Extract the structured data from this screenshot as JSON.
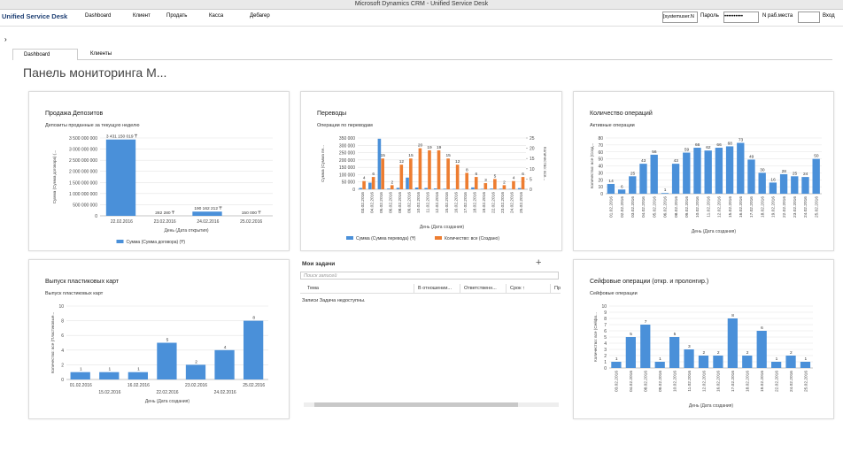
{
  "window_title": "Microsoft Dynamics CRM - Unified Service Desk",
  "toolbar": {
    "app": "Unified Service Desk",
    "items": [
      "Dashboard",
      "Клиент",
      "Продать",
      "Касса",
      "Дебагер"
    ],
    "user": "[systemuser.N",
    "password_label": "Пароль",
    "password": "••••••••••",
    "workplace_label": "N раб.места",
    "login": "Вход"
  },
  "tabs": [
    "Dashboard",
    "Клиенты"
  ],
  "heading": "Панель мониторинга М...",
  "charts": [
    {
      "type": "bar",
      "title": "Продажа Депозитов",
      "subtitle": "Депозиты проданные за текущую неделю",
      "y_label": "Сумма (Сумма договора) (...",
      "x_label": "День (Дата открытия)",
      "legend": true,
      "categories": [
        "22.02.2016",
        "23.02.2016",
        "24.02.2016",
        "25.02.2016"
      ],
      "series": [
        {
          "name": "Сумма (Сумма договора) (₸)",
          "color": "#4a90d9",
          "values": [
            3431150019,
            282280,
            190162212,
            150000
          ]
        }
      ],
      "value_labels": [
        "3 431 150 019 ₸",
        "282 280 ₸",
        "190 162 212 ₸",
        "150 000 ₸"
      ],
      "ylim": [
        0,
        3500000000
      ],
      "yticks": [
        0,
        {
          "value": 500000000,
          "label": "500 000 000"
        },
        {
          "value": 1000000000,
          "label": "1 000 000 000"
        },
        {
          "value": 1500000000,
          "label": "1 500 000 000"
        },
        {
          "value": 2000000000,
          "label": "2 000 000 000"
        },
        {
          "value": 2500000000,
          "label": "2 500 000 000"
        },
        {
          "value": 3000000000,
          "label": "3 000 000 000"
        },
        {
          "value": 3500000000,
          "label": "3 500 000 000"
        }
      ]
    },
    {
      "type": "bar",
      "title": "Переводы",
      "subtitle": "Операции по переводам",
      "y_label": "Сумма (Сумма пе...",
      "y2_label": "Количество: все...",
      "x_label": "День (Дата создания)",
      "legend": true,
      "categories": [
        "03.02.2016",
        "04.02.2016",
        "05.02.2016",
        "06.02.2016",
        "08.02.2016",
        "09.02.2016",
        "10.02.2016",
        "11.02.2016",
        "12.02.2016",
        "15.02.2016",
        "16.02.2016",
        "17.02.2016",
        "18.02.2016",
        "19.02.2016",
        "22.02.2016",
        "23.02.2016",
        "24.02.2016",
        "25.02.2016"
      ],
      "series": [
        {
          "name": "Сумма (Сумма перевода) (₸)",
          "color": "#4a90d9",
          "values": [
            9000,
            45000,
            344880,
            5000,
            10000,
            79820,
            12000,
            9000,
            6000,
            4000,
            3000,
            2000,
            12912,
            3000,
            5000,
            4000,
            2000,
            8000
          ]
        },
        {
          "name": "Количество: все (Создано)",
          "color": "#ed7d31",
          "axis": "y2",
          "values": [
            4,
            6,
            15,
            2,
            12,
            15,
            20,
            19,
            19,
            15,
            12,
            8,
            6,
            3,
            5,
            2,
            4,
            6
          ]
        }
      ],
      "ylim": [
        0,
        350000
      ],
      "yticks": [
        0,
        {
          "value": 50000,
          "label": "50 000"
        },
        {
          "value": 100000,
          "label": "100 000"
        },
        {
          "value": 150000,
          "label": "150 000"
        },
        {
          "value": 200000,
          "label": "200 000"
        },
        {
          "value": 250000,
          "label": "250 000"
        },
        {
          "value": 300000,
          "label": "300 000"
        },
        {
          "value": 350000,
          "label": "350 000"
        }
      ],
      "y2lim": [
        0,
        25
      ],
      "y2ticks": [
        0,
        5,
        10,
        15,
        20,
        25
      ]
    },
    {
      "type": "bar",
      "title": "Количество операций",
      "subtitle": "Активные операции",
      "y_label": "Количество: все (Созд...",
      "x_label": "День (Дата создания)",
      "legend": false,
      "categories": [
        "01.02.2016",
        "02.02.2016",
        "03.02.2016",
        "04.02.2016",
        "05.02.2016",
        "06.02.2016",
        "08.02.2016",
        "09.02.2016",
        "10.02.2016",
        "11.02.2016",
        "12.02.2016",
        "15.02.2016",
        "16.02.2016",
        "17.02.2016",
        "18.02.2016",
        "19.02.2016",
        "22.02.2016",
        "23.02.2016",
        "24.02.2016",
        "25.02.2016"
      ],
      "series": [
        {
          "name": "Количество: все (Создано)",
          "color": "#4a90d9",
          "values": [
            14,
            6,
            25,
            43,
            56,
            1,
            43,
            59,
            66,
            62,
            66,
            68,
            73,
            49,
            30,
            16,
            28,
            25,
            24,
            50
          ]
        }
      ],
      "ylim": [
        0,
        80
      ],
      "yticks": [
        0,
        10,
        20,
        30,
        40,
        50,
        60,
        70,
        80
      ]
    },
    {
      "type": "bar",
      "title": "Выпуск пластиковых карт",
      "subtitle": "Выпуск пластиковых карт",
      "y_label": "Количество: все (Пластиковые...",
      "x_label": "День (Дата создания)",
      "legend": false,
      "stagger": true,
      "categories": [
        "01.02.2016",
        "15.02.2016",
        "16.02.2016",
        "22.02.2016",
        "23.02.2016",
        "24.02.2016",
        "25.02.2016"
      ],
      "series": [
        {
          "name": "Количество: все (Создано)",
          "color": "#4a90d9",
          "values": [
            1,
            1,
            1,
            5,
            2,
            4,
            8
          ]
        }
      ],
      "ylim": [
        0,
        10
      ],
      "yticks": [
        0,
        2,
        4,
        6,
        8,
        10
      ]
    },
    {
      "type": "bar",
      "title": "Сейфовые операции (откр. и пролонгир.)",
      "subtitle": "Сейфовые операции",
      "y_label": "Количество: все (Сейфо...",
      "x_label": "День (Дата создания)",
      "legend": false,
      "categories": [
        "03.02.2016",
        "04.02.2016",
        "08.02.2016",
        "09.02.2016",
        "10.02.2016",
        "11.02.2016",
        "12.02.2016",
        "16.02.2016",
        "17.02.2016",
        "18.02.2016",
        "19.02.2016",
        "22.02.2016",
        "24.02.2016",
        "25.02.2016"
      ],
      "series": [
        {
          "name": "Количество: все (Создано)",
          "color": "#4a90d9",
          "values": [
            1,
            5,
            7,
            1,
            5,
            3,
            2,
            2,
            8,
            2,
            6,
            1,
            2,
            1
          ]
        }
      ],
      "ylim": [
        0,
        10
      ],
      "yticks": [
        0,
        1,
        2,
        3,
        4,
        5,
        6,
        7,
        8,
        9,
        10
      ]
    }
  ],
  "tasks": {
    "title": "Мои задачи",
    "search": "Поиск записей",
    "columns": [
      "Тема",
      "В отношении...",
      "Ответственн...",
      "Срок ↑",
      "Пр"
    ],
    "empty": "Записи Задача недоступны."
  }
}
